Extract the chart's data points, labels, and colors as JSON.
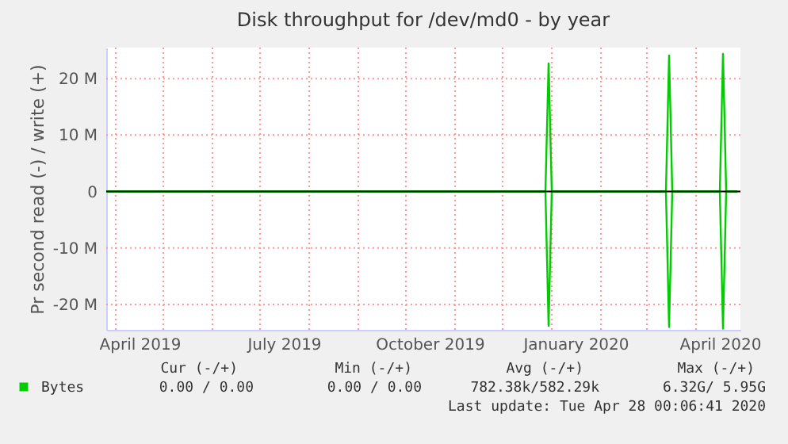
{
  "chart_data": {
    "type": "line",
    "title": "Disk throughput for /dev/md0 - by year",
    "ylabel": "Pr second read (-) / write (+)",
    "series": [
      {
        "name": "Bytes",
        "color": "#00cc00",
        "x": [
          "2019-03-26",
          "2019-12-28",
          "2019-12-30",
          "2020-01-01",
          "2020-03-13",
          "2020-03-15",
          "2020-03-17",
          "2020-04-16",
          "2020-04-18",
          "2020-04-20",
          "2020-04-27"
        ],
        "values": [
          0,
          0,
          22700000,
          0,
          0,
          24100000,
          0,
          0,
          24400000,
          0,
          0
        ]
      },
      {
        "color": "#00cc00",
        "x": [
          "2019-03-26",
          "2019-12-28",
          "2019-12-30",
          "2020-01-01",
          "2020-03-13",
          "2020-03-15",
          "2020-03-17",
          "2020-04-16",
          "2020-04-18",
          "2020-04-20",
          "2020-04-27"
        ],
        "values": [
          0,
          0,
          -23800000,
          0,
          0,
          -24000000,
          0,
          0,
          -24300000,
          0,
          0
        ]
      }
    ],
    "xlim": [
      "2019-03-26",
      "2020-04-29"
    ],
    "xticks": [
      {
        "value": "2019-04-01",
        "label": null
      },
      {
        "value": "2019-04-16",
        "label": "April 2019"
      },
      {
        "value": "2019-05-01",
        "label": null
      },
      {
        "value": "2019-06-01",
        "label": null
      },
      {
        "value": "2019-07-01",
        "label": null
      },
      {
        "value": "2019-07-16",
        "label": "July 2019"
      },
      {
        "value": "2019-08-01",
        "label": null
      },
      {
        "value": "2019-09-01",
        "label": null
      },
      {
        "value": "2019-10-01",
        "label": null
      },
      {
        "value": "2019-10-16",
        "label": "October 2019"
      },
      {
        "value": "2019-11-01",
        "label": null
      },
      {
        "value": "2019-12-01",
        "label": null
      },
      {
        "value": "2020-01-01",
        "label": null
      },
      {
        "value": "2020-01-16",
        "label": "January 2020"
      },
      {
        "value": "2020-02-01",
        "label": null
      },
      {
        "value": "2020-03-01",
        "label": null
      },
      {
        "value": "2020-04-01",
        "label": null
      },
      {
        "value": "2020-04-16",
        "label": "April 2020"
      }
    ],
    "ylim": [
      -24500000,
      25500000
    ],
    "yticks": [
      {
        "value": -20000000,
        "label": "-20 M"
      },
      {
        "value": -10000000,
        "label": "-10 M"
      },
      0,
      {
        "value": 10000000,
        "label": "10 M"
      },
      {
        "value": 20000000,
        "label": "20 M"
      }
    ],
    "grid": true,
    "legend": "bottom left",
    "ref_lines": [
      {
        "axis": "y",
        "value": 0,
        "color": "#000000"
      }
    ],
    "annotations": [
      "Cur (-/+)",
      "Min (-/+)",
      "Avg (-/+)",
      "Max (-/+)",
      "0.00 /  0.00",
      "0.00 /  0.00",
      "782.38k/582.29k",
      "6.32G/  5.95G",
      "Last update: Tue Apr 28 00:06:41 2020"
    ]
  }
}
